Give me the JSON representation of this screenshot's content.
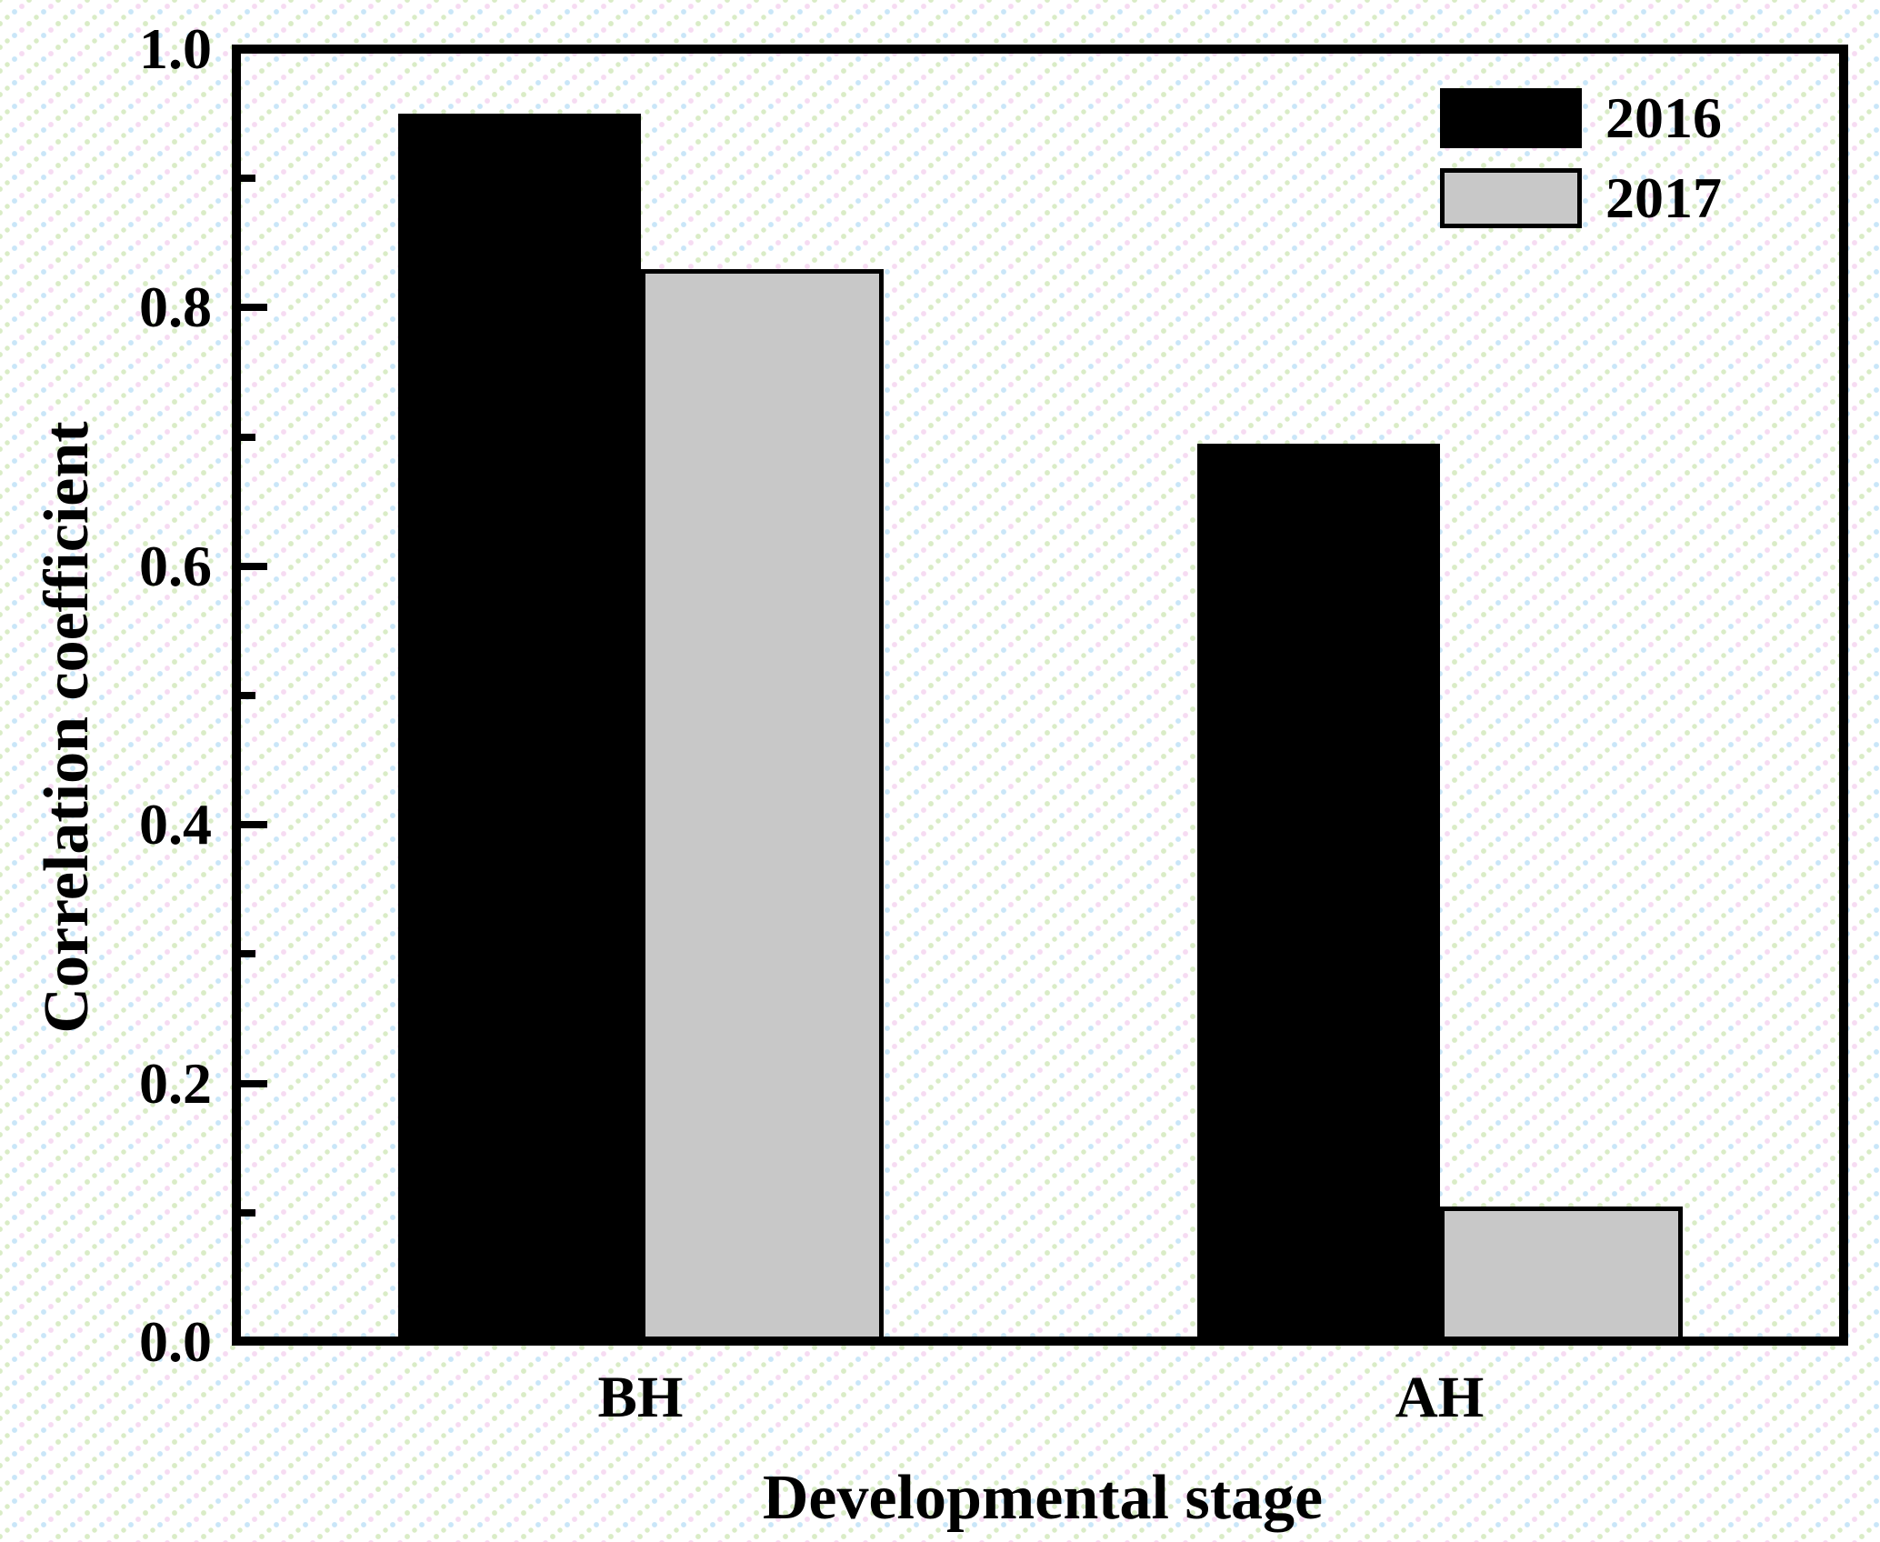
{
  "chart_data": {
    "type": "bar",
    "title": "",
    "xlabel": "Developmental stage",
    "ylabel": "Correlation coefficient",
    "categories": [
      "BH",
      "AH"
    ],
    "series": [
      {
        "name": "2016",
        "color": "#000000",
        "values": [
          0.95,
          0.695
        ]
      },
      {
        "name": "2017",
        "color": "#c8c8c8",
        "values": [
          0.83,
          0.105
        ]
      }
    ],
    "ylim": [
      0.0,
      1.0
    ],
    "ytick_step": 0.2,
    "minor_tick_step": 0.1,
    "ytick_decimals": 1,
    "grid": false,
    "legend_position": "top-right",
    "bar_border_color": "#000000",
    "frame_color": "#000000",
    "background_dot_colors": [
      "#c9e6f8",
      "#d9ecc6",
      "#f6dbf2"
    ]
  }
}
